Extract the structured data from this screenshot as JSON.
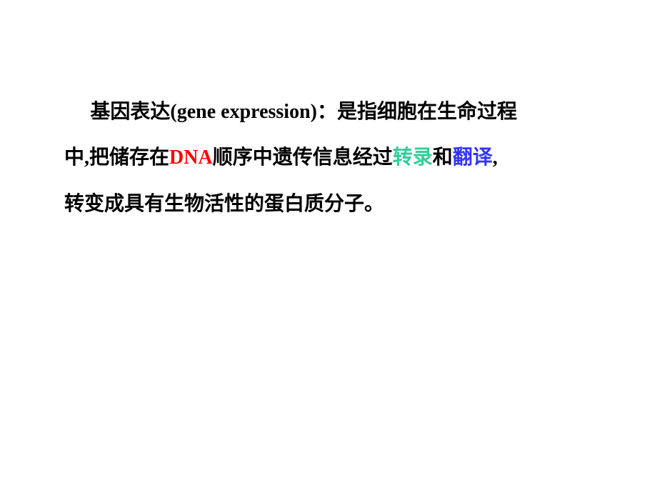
{
  "content": {
    "line1_part1": "基因表达(gene expression)：是指细胞在生命过程",
    "line2_part1": "中,把储存在",
    "line2_dna": "DNA",
    "line2_part2": "顺序中遗传信息经过",
    "line2_transcription": "转录",
    "line2_and": "和",
    "line2_translation": "翻译",
    "line2_comma": ",",
    "line3": "转变成具有生物活性的蛋白质分子。"
  },
  "styling": {
    "background_color": "#ffffff",
    "text_color": "#000000",
    "red_color": "#ff0000",
    "teal_color": "#33cc99",
    "blue_color": "#3333ff",
    "font_size": 28,
    "font_weight": "bold",
    "line_height": 2.3,
    "font_family": "SimSun"
  }
}
